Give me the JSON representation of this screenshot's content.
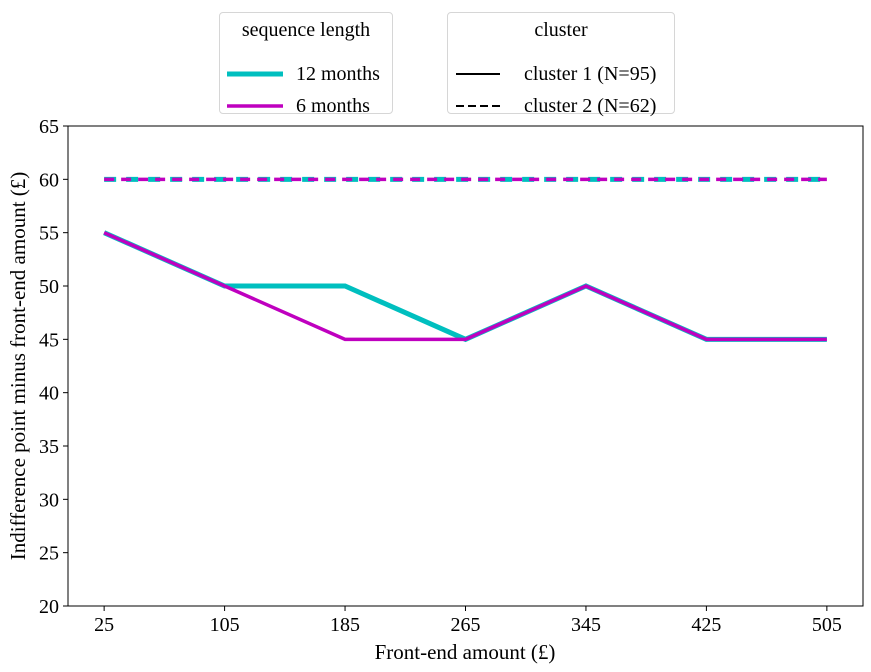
{
  "chart_data": {
    "type": "line",
    "xlabel": "Front-end amount (£)",
    "ylabel": "Indifference point minus front-end amount (£)",
    "x": [
      25,
      105,
      185,
      265,
      345,
      425,
      505
    ],
    "ylim": [
      20,
      65
    ],
    "yticks": [
      20,
      25,
      30,
      35,
      40,
      45,
      50,
      55,
      60,
      65
    ],
    "grid": false,
    "series": [
      {
        "length": "12 months",
        "cluster": "cluster 2 (N=62)",
        "color": "#00bfbf",
        "dash": "dashed",
        "values": [
          60,
          60,
          60,
          60,
          60,
          60,
          60
        ]
      },
      {
        "length": "6 months",
        "cluster": "cluster 2 (N=62)",
        "color": "#bf00bf",
        "dash": "dashed",
        "values": [
          60,
          60,
          60,
          60,
          60,
          60,
          60
        ]
      },
      {
        "length": "12 months",
        "cluster": "cluster 1 (N=95)",
        "color": "#00bfbf",
        "dash": "solid",
        "values": [
          55,
          50,
          50,
          45,
          50,
          45,
          45
        ]
      },
      {
        "length": "6 months",
        "cluster": "cluster 1 (N=95)",
        "color": "#bf00bf",
        "dash": "solid",
        "values": [
          55,
          50,
          45,
          45,
          50,
          45,
          45
        ]
      }
    ]
  },
  "legend_length": {
    "title": "sequence length",
    "items": [
      {
        "label": "12 months",
        "color": "#00bfbf"
      },
      {
        "label": "6 months",
        "color": "#bf00bf"
      }
    ]
  },
  "legend_cluster": {
    "title": "cluster",
    "items": [
      {
        "label": "cluster 1 (N=95)",
        "style": "solid"
      },
      {
        "label": "cluster 2 (N=62)",
        "style": "dashed"
      }
    ]
  }
}
